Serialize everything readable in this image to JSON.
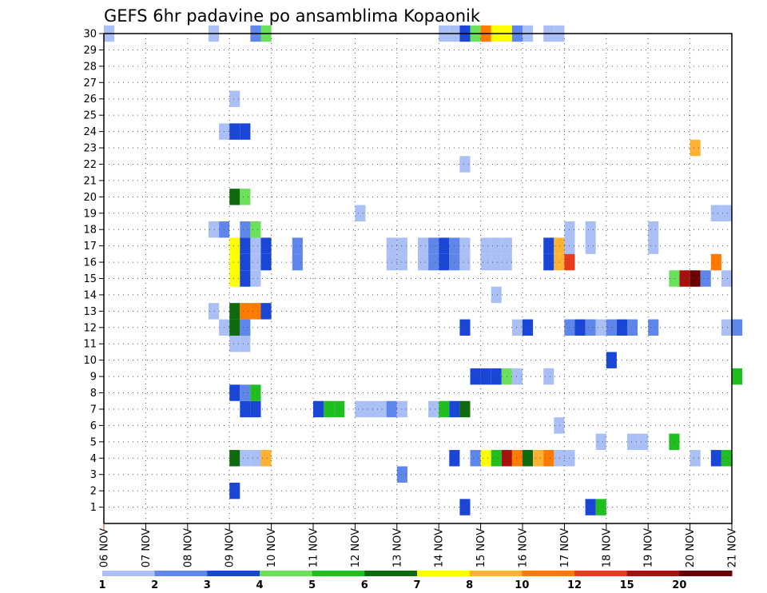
{
  "chart_data": {
    "type": "heatmap",
    "title": "GEFS 6hr padavine po ansamblima Kopaonik",
    "xlabel": "",
    "ylabel": "",
    "x_ticks": [
      "06 NOV",
      "07 NOV",
      "08 NOV",
      "09 NOV",
      "10 NOV",
      "11 NOV",
      "12 NOV",
      "13 NOV",
      "14 NOV",
      "15 NOV",
      "16 NOV",
      "17 NOV",
      "18 NOV",
      "19 NOV",
      "20 NOV",
      "21 NOV"
    ],
    "y_ticks": [
      "1",
      "2",
      "3",
      "4",
      "5",
      "6",
      "7",
      "8",
      "9",
      "10",
      "11",
      "12",
      "13",
      "14",
      "15",
      "16",
      "17",
      "18",
      "19",
      "20",
      "21",
      "22",
      "23",
      "24",
      "25",
      "26",
      "27",
      "28",
      "29",
      "30"
    ],
    "x_range_days": [
      0,
      15
    ],
    "y_range": [
      0,
      30
    ],
    "grid": true,
    "legend_position": "bottom",
    "legend": {
      "labels": [
        "1",
        "2",
        "3",
        "4",
        "5",
        "6",
        "7",
        "8",
        "10",
        "12",
        "15",
        "20"
      ],
      "colors": [
        "#a9bff5",
        "#5f87eb",
        "#1a46d8",
        "#6be05a",
        "#1fbf1f",
        "#0d6b0d",
        "#ffff00",
        "#ffb232",
        "#ff7a00",
        "#e83c1c",
        "#a81010",
        "#6b0000"
      ]
    },
    "member_cells": {
      "1": [
        [
          8.5,
          3
        ],
        [
          11.5,
          3
        ],
        [
          11.75,
          5
        ]
      ],
      "2": [
        [
          3,
          3
        ]
      ],
      "3": [
        [
          7,
          2
        ]
      ],
      "4": [
        [
          3,
          6
        ],
        [
          3.25,
          1
        ],
        [
          3.5,
          1
        ],
        [
          3.75,
          8
        ],
        [
          8.25,
          3
        ],
        [
          8.75,
          2
        ],
        [
          9,
          7
        ],
        [
          9.25,
          5
        ],
        [
          9.5,
          11
        ],
        [
          9.75,
          9
        ],
        [
          10,
          6
        ],
        [
          10.25,
          8
        ],
        [
          10.5,
          9
        ],
        [
          10.75,
          1
        ],
        [
          11,
          1
        ],
        [
          14,
          1
        ],
        [
          14.5,
          3
        ],
        [
          14.75,
          5
        ]
      ],
      "5": [
        [
          11.75,
          1
        ],
        [
          12.5,
          1
        ],
        [
          12.75,
          1
        ],
        [
          13.5,
          5
        ]
      ],
      "6": [
        [
          10.75,
          1
        ]
      ],
      "7": [
        [
          3.25,
          3
        ],
        [
          3.5,
          3
        ],
        [
          5,
          3
        ],
        [
          5.25,
          5
        ],
        [
          5.5,
          5
        ],
        [
          6,
          1
        ],
        [
          6.25,
          1
        ],
        [
          6.5,
          1
        ],
        [
          6.75,
          2
        ],
        [
          7,
          1
        ],
        [
          7.75,
          1
        ],
        [
          8,
          5
        ],
        [
          8.25,
          3
        ],
        [
          8.5,
          6
        ]
      ],
      "8": [
        [
          3,
          3
        ],
        [
          3.25,
          2
        ],
        [
          3.5,
          5
        ]
      ],
      "9": [
        [
          8.75,
          3
        ],
        [
          9,
          3
        ],
        [
          9.25,
          3
        ],
        [
          9.5,
          4
        ],
        [
          9.75,
          1
        ],
        [
          10.5,
          1
        ],
        [
          15,
          5
        ]
      ],
      "10": [
        [
          12,
          3
        ]
      ],
      "11": [
        [
          3,
          1
        ],
        [
          3.25,
          1
        ]
      ],
      "12": [
        [
          2.75,
          1
        ],
        [
          3,
          6
        ],
        [
          3.25,
          2
        ],
        [
          8.5,
          3
        ],
        [
          9.75,
          1
        ],
        [
          10,
          3
        ],
        [
          11,
          2
        ],
        [
          11.25,
          3
        ],
        [
          11.5,
          2
        ],
        [
          11.75,
          1
        ],
        [
          12,
          2
        ],
        [
          12.25,
          3
        ],
        [
          12.5,
          2
        ],
        [
          13,
          2
        ],
        [
          14.75,
          1
        ],
        [
          15,
          2
        ]
      ],
      "13": [
        [
          2.5,
          1
        ],
        [
          3,
          6
        ],
        [
          3.25,
          9
        ],
        [
          3.5,
          9
        ],
        [
          3.75,
          3
        ]
      ],
      "14": [
        [
          9.25,
          1
        ]
      ],
      "15": [
        [
          3,
          7
        ],
        [
          3.25,
          3
        ],
        [
          3.5,
          1
        ],
        [
          13.5,
          4
        ],
        [
          13.75,
          11
        ],
        [
          14,
          12
        ],
        [
          14.25,
          2
        ],
        [
          14.75,
          1
        ]
      ],
      "16": [
        [
          3,
          7
        ],
        [
          3.25,
          3
        ],
        [
          3.5,
          1
        ],
        [
          3.75,
          3
        ],
        [
          4.5,
          2
        ],
        [
          6.75,
          1
        ],
        [
          7,
          1
        ],
        [
          7.5,
          1
        ],
        [
          7.75,
          2
        ],
        [
          8,
          3
        ],
        [
          8.25,
          2
        ],
        [
          8.5,
          1
        ],
        [
          9,
          1
        ],
        [
          9.25,
          1
        ],
        [
          9.5,
          1
        ],
        [
          10.5,
          3
        ],
        [
          10.75,
          8
        ],
        [
          11,
          10
        ],
        [
          14.5,
          9
        ]
      ],
      "17": [
        [
          3,
          7
        ],
        [
          3.25,
          3
        ],
        [
          3.5,
          1
        ],
        [
          3.75,
          3
        ],
        [
          4.5,
          2
        ],
        [
          6.75,
          1
        ],
        [
          7,
          1
        ],
        [
          7.5,
          1
        ],
        [
          7.75,
          2
        ],
        [
          8,
          3
        ],
        [
          8.25,
          2
        ],
        [
          8.5,
          1
        ],
        [
          9,
          1
        ],
        [
          9.25,
          1
        ],
        [
          9.5,
          1
        ],
        [
          10.5,
          3
        ],
        [
          10.75,
          8
        ],
        [
          11,
          10
        ],
        [
          11,
          1
        ],
        [
          11.5,
          1
        ],
        [
          13,
          1
        ]
      ],
      "18": [
        [
          2.5,
          1
        ],
        [
          2.75,
          2
        ],
        [
          3.25,
          2
        ],
        [
          3.5,
          4
        ],
        [
          11,
          1
        ],
        [
          11.5,
          1
        ],
        [
          13,
          1
        ]
      ],
      "19": [
        [
          6,
          1
        ],
        [
          14.5,
          1
        ],
        [
          14.75,
          1
        ]
      ],
      "20": [
        [
          3,
          6
        ],
        [
          3.25,
          4
        ]
      ],
      "22": [
        [
          8.5,
          1
        ]
      ],
      "23": [
        [
          14,
          8
        ]
      ],
      "24": [
        [
          2.75,
          1
        ],
        [
          3,
          3
        ],
        [
          3.25,
          3
        ]
      ],
      "26": [
        [
          3,
          1
        ]
      ],
      "30": [
        [
          0,
          1
        ],
        [
          2.5,
          1
        ],
        [
          3.5,
          2
        ],
        [
          3.75,
          4
        ],
        [
          8,
          1
        ],
        [
          8.25,
          1
        ],
        [
          8.5,
          3
        ],
        [
          8.75,
          4
        ],
        [
          9,
          9
        ],
        [
          9.25,
          7
        ],
        [
          9.5,
          7
        ],
        [
          9.75,
          2
        ],
        [
          10,
          1
        ],
        [
          10.5,
          1
        ],
        [
          10.75,
          1
        ]
      ]
    }
  }
}
